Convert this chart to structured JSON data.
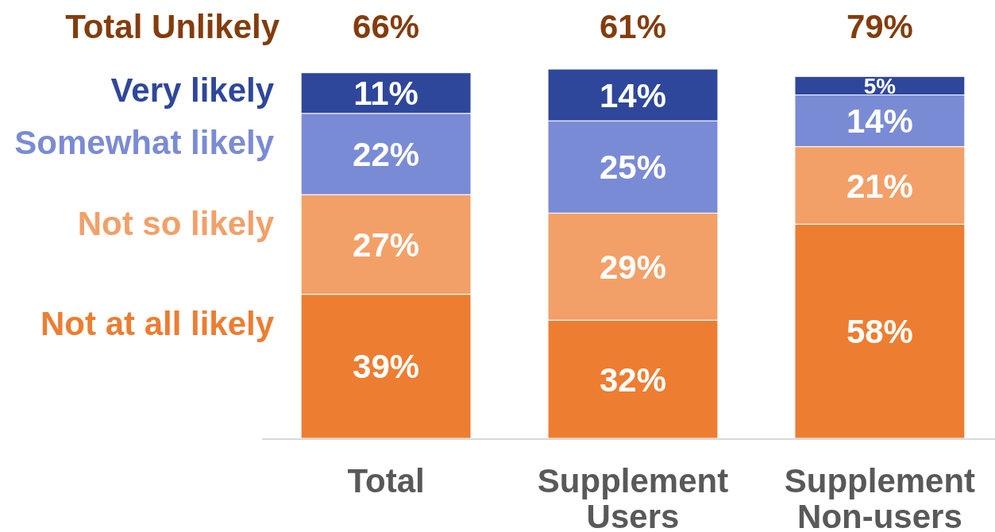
{
  "chart_data": {
    "type": "bar",
    "stacked": true,
    "categories": [
      "Total",
      "Supplement Users",
      "Supplement Non-users"
    ],
    "series": [
      {
        "name": "Not at all likely",
        "color": "#ed7d31",
        "values": [
          39,
          32,
          58
        ],
        "value_labels": [
          "39%",
          "32%",
          "58%"
        ]
      },
      {
        "name": "Not so likely",
        "color": "#f2a068",
        "values": [
          27,
          29,
          21
        ],
        "value_labels": [
          "27%",
          "29%",
          "21%"
        ]
      },
      {
        "name": "Somewhat likely",
        "color": "#7a8bd6",
        "values": [
          22,
          25,
          14
        ],
        "value_labels": [
          "22%",
          "25%",
          "14%"
        ]
      },
      {
        "name": "Very likely",
        "color": "#2e479b",
        "values": [
          11,
          14,
          5
        ],
        "value_labels": [
          "11%",
          "14%",
          "5%"
        ]
      }
    ],
    "legend": "left",
    "annotations": [
      "Total Unlikely",
      "66%",
      "61%",
      "79%"
    ]
  }
}
